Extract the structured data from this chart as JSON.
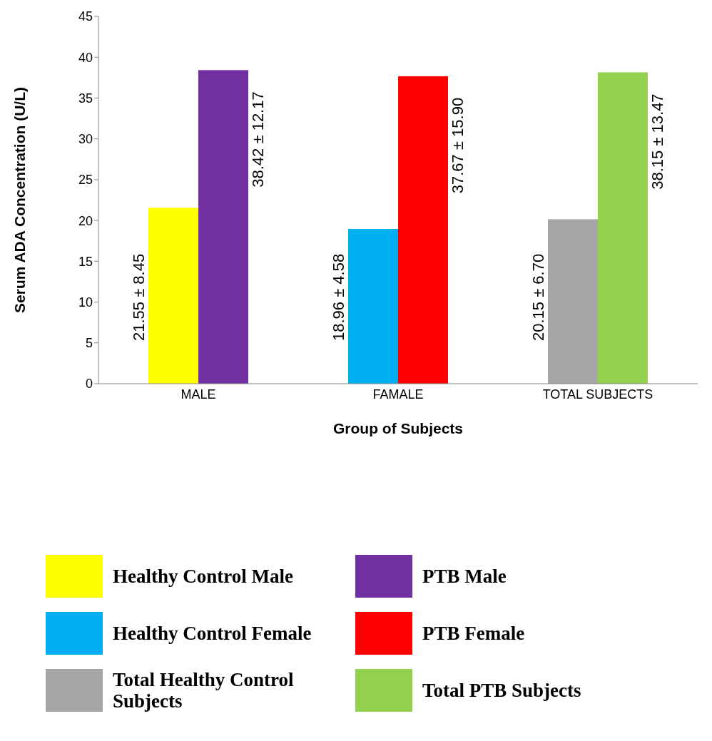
{
  "chart_data": {
    "type": "bar",
    "xlabel": "Group of Subjects",
    "ylabel": "Serum ADA Concentration (U/L)",
    "categories": [
      "MALE",
      "FAMALE",
      "TOTAL SUBJECTS"
    ],
    "series": [
      {
        "name": "Healthy Control Male",
        "color": "#ffff00",
        "values": [
          21.55,
          null,
          null
        ],
        "value_labels": [
          "21.55 ± 8.45",
          null,
          null
        ]
      },
      {
        "name": "PTB Male",
        "color": "#7030a0",
        "values": [
          38.42,
          null,
          null
        ],
        "value_labels": [
          "38.42 ± 12.17",
          null,
          null
        ]
      },
      {
        "name": "Healthy Control Female",
        "color": "#00b0f0",
        "values": [
          null,
          18.96,
          null
        ],
        "value_labels": [
          null,
          "18.96 ± 4.58",
          null
        ]
      },
      {
        "name": "PTB Female",
        "color": "#ff0000",
        "values": [
          null,
          37.67,
          null
        ],
        "value_labels": [
          null,
          "37.67 ± 15.90",
          null
        ]
      },
      {
        "name": "Total Healthy Control Subjects",
        "color": "#a6a6a6",
        "values": [
          null,
          null,
          20.15
        ],
        "value_labels": [
          null,
          null,
          "20.15 ± 6.70"
        ]
      },
      {
        "name": "Total PTB Subjects",
        "color": "#92d050",
        "values": [
          null,
          null,
          38.15
        ],
        "value_labels": [
          null,
          null,
          "38.15 ± 13.47"
        ]
      }
    ],
    "ylim": [
      0,
      45
    ],
    "yticks": [
      0,
      5,
      10,
      15,
      20,
      25,
      30,
      35,
      40,
      45
    ],
    "grid": false,
    "legend": "bottom"
  }
}
